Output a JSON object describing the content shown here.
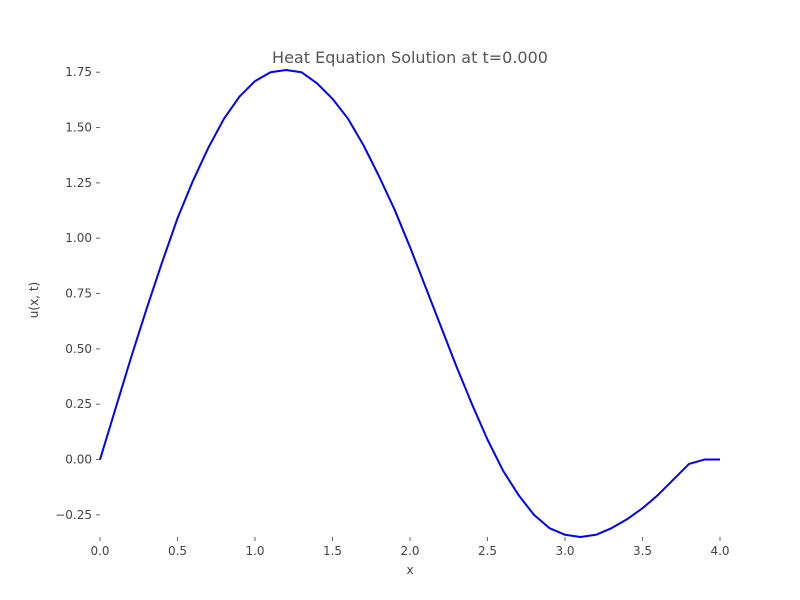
{
  "chart_data": {
    "type": "line",
    "title": "Heat Equation Solution at t=0.000",
    "xlabel": "x",
    "ylabel": "u(x, t)",
    "xlim": [
      0,
      4
    ],
    "ylim": [
      -0.35,
      1.76
    ],
    "grid": false,
    "x_ticks": [
      0.0,
      0.5,
      1.0,
      1.5,
      2.0,
      2.5,
      3.0,
      3.5,
      4.0
    ],
    "x_tick_labels": [
      "0.0",
      "0.5",
      "1.0",
      "1.5",
      "2.0",
      "2.5",
      "3.0",
      "3.5",
      "4.0"
    ],
    "y_ticks": [
      -0.25,
      0.0,
      0.25,
      0.5,
      0.75,
      1.0,
      1.25,
      1.5,
      1.75
    ],
    "y_tick_labels": [
      "−0.25",
      "0.00",
      "0.25",
      "0.50",
      "0.75",
      "1.00",
      "1.25",
      "1.50",
      "1.75"
    ],
    "series": [
      {
        "color": "#0000ff",
        "x": [
          0.0,
          0.1,
          0.2,
          0.3,
          0.4,
          0.5,
          0.6,
          0.7,
          0.8,
          0.9,
          1.0,
          1.1,
          1.2,
          1.3,
          1.4,
          1.5,
          1.6,
          1.7,
          1.8,
          1.9,
          2.0,
          2.1,
          2.2,
          2.3,
          2.4,
          2.5,
          2.6,
          2.7,
          2.8,
          2.9,
          3.0,
          3.1,
          3.2,
          3.3,
          3.4,
          3.5,
          3.6,
          3.7,
          3.8,
          3.9,
          4.0
        ],
        "y": [
          0.0,
          0.23,
          0.46,
          0.68,
          0.89,
          1.09,
          1.26,
          1.41,
          1.54,
          1.64,
          1.71,
          1.75,
          1.76,
          1.75,
          1.7,
          1.63,
          1.54,
          1.42,
          1.28,
          1.13,
          0.96,
          0.78,
          0.6,
          0.42,
          0.25,
          0.09,
          -0.05,
          -0.16,
          -0.25,
          -0.31,
          -0.34,
          -0.35,
          -0.34,
          -0.31,
          -0.27,
          -0.22,
          -0.16,
          -0.09,
          -0.02,
          0.0,
          0.0
        ]
      }
    ]
  }
}
